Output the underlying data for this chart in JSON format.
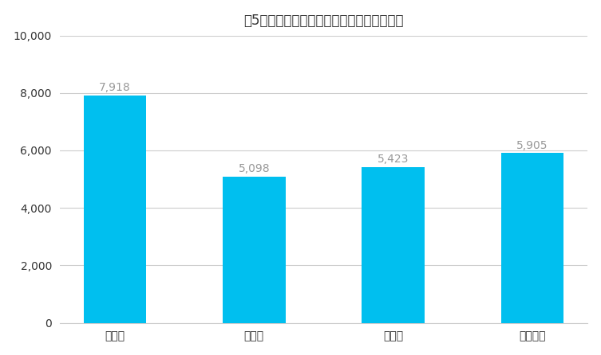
{
  "title": "築5年以下のマンションの売却相場（万円）",
  "categories": [
    "東京都",
    "埼玉県",
    "千葉県",
    "神奈川県"
  ],
  "values": [
    7918,
    5098,
    5423,
    5905
  ],
  "bar_color": "#00BFEF",
  "ylim": [
    0,
    10000
  ],
  "yticks": [
    0,
    2000,
    4000,
    6000,
    8000,
    10000
  ],
  "value_labels": [
    "7,918",
    "5,098",
    "5,423",
    "5,905"
  ],
  "value_label_color": "#999999",
  "title_fontsize": 12,
  "label_fontsize": 10,
  "tick_fontsize": 10,
  "background_color": "#ffffff",
  "grid_color": "#cccccc",
  "bar_width": 0.45
}
